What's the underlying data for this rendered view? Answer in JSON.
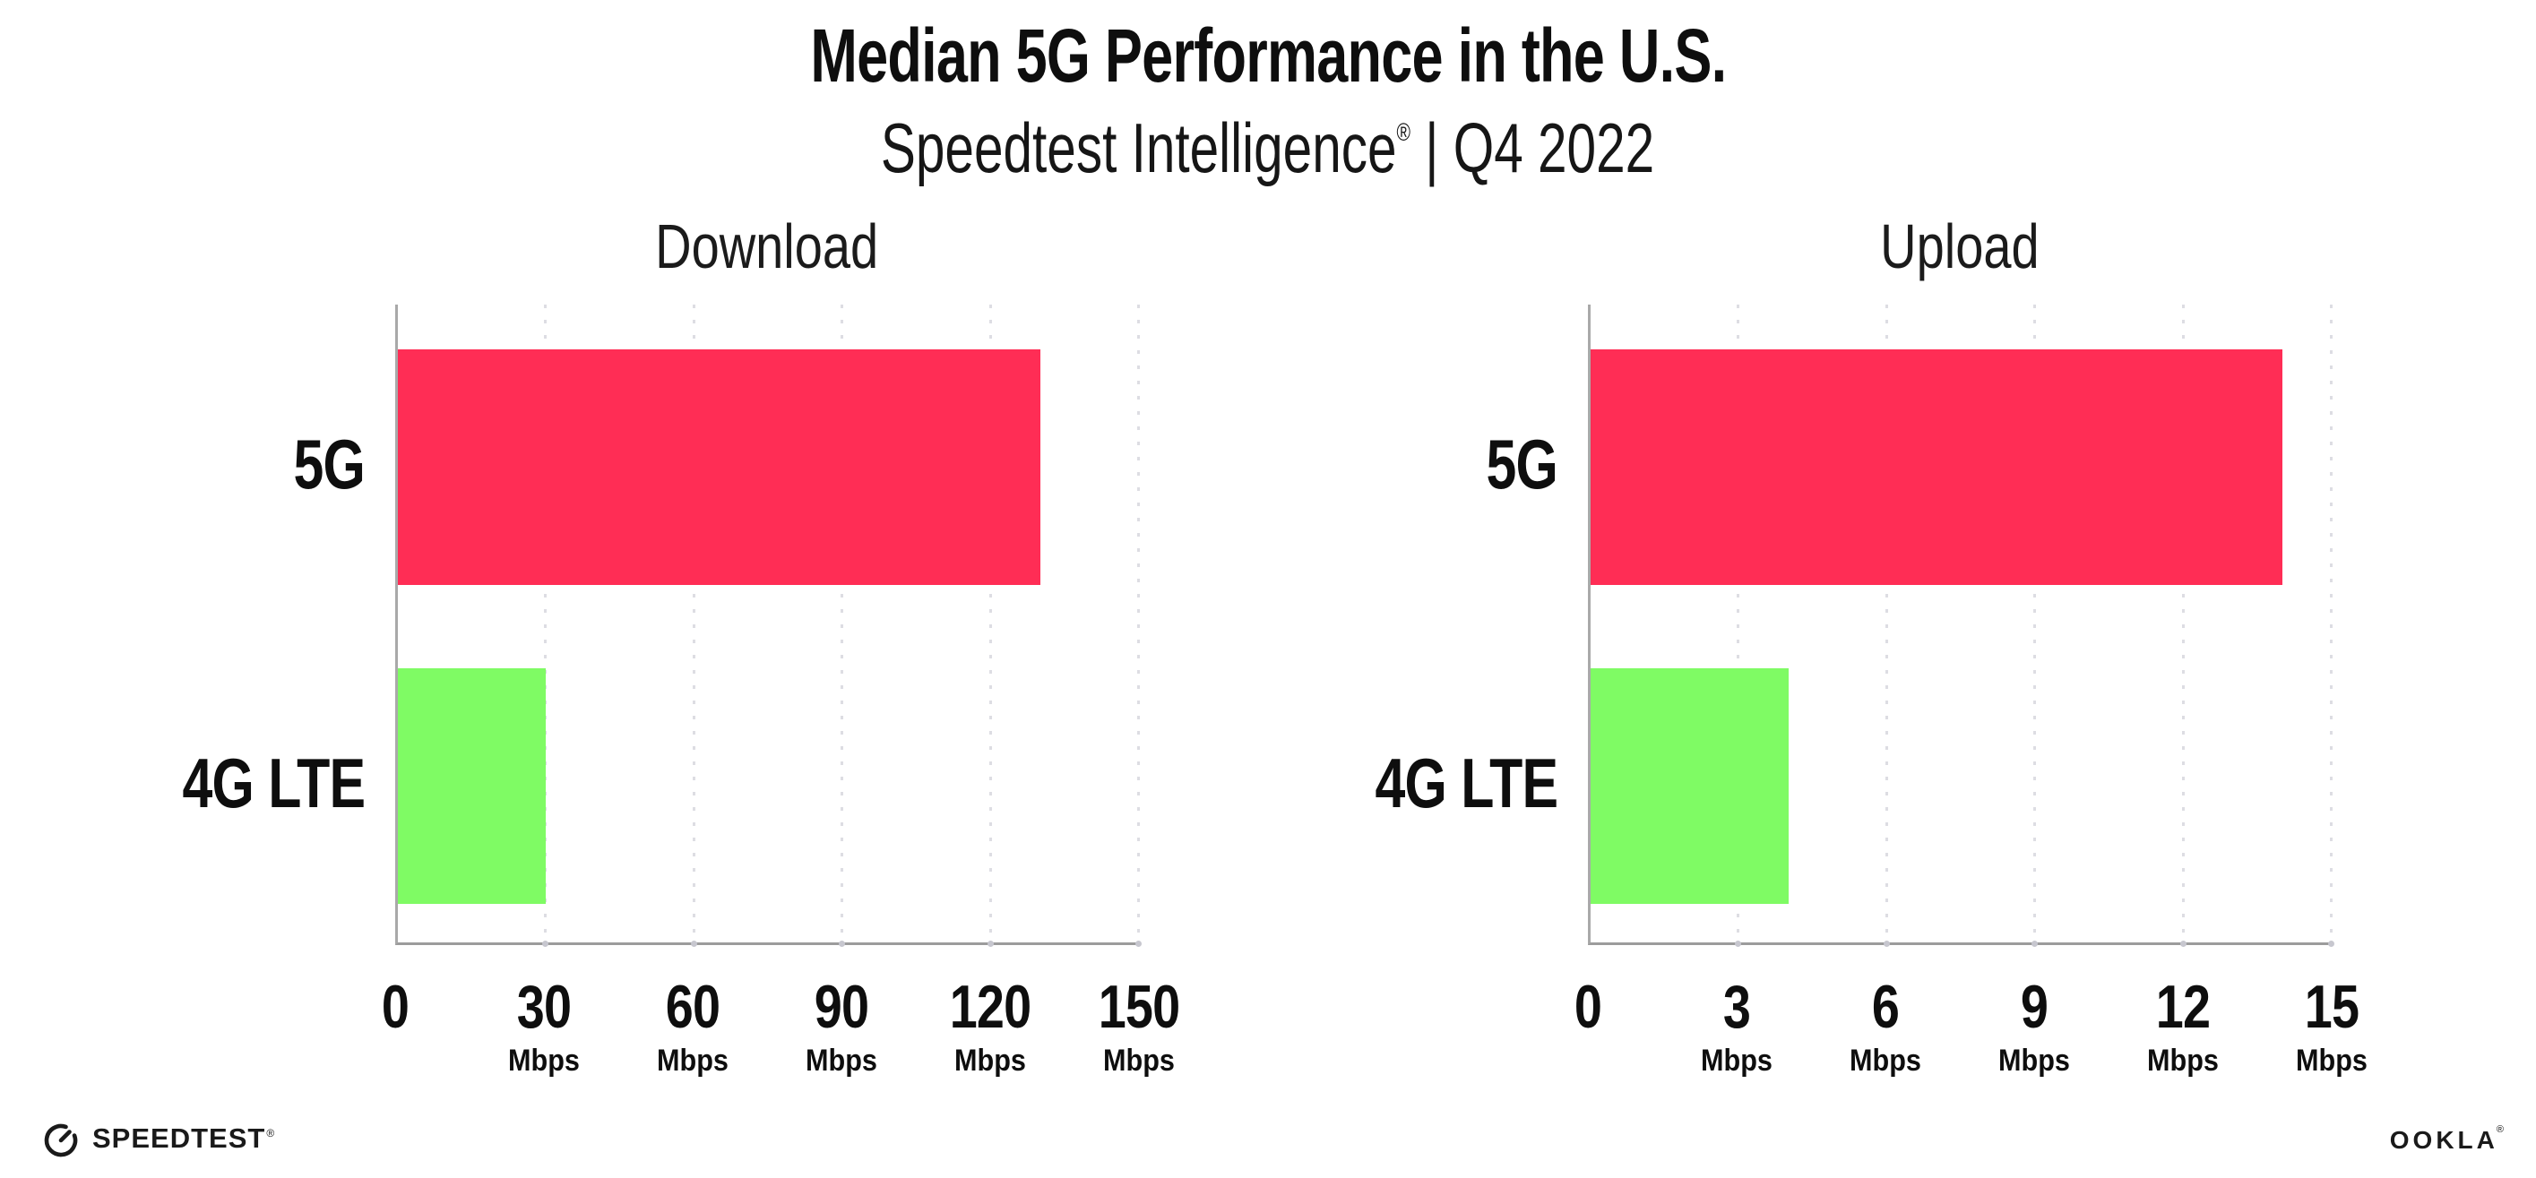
{
  "header": {
    "title": "Median 5G Performance in the U.S.",
    "subtitle_brand": "Speedtest Intelligence",
    "subtitle_reg": "®",
    "subtitle_rest": " | Q4 2022"
  },
  "colors": {
    "bar_5g": "#FF2D55",
    "bar_4g": "#7FFB64",
    "axis": "#9c9c9c",
    "gridline": "#dddde3",
    "text": "#0e0e0e"
  },
  "chart_data": [
    {
      "type": "bar",
      "orientation": "horizontal",
      "title": "Download",
      "categories": [
        "5G",
        "4G LTE"
      ],
      "values": [
        130,
        30
      ],
      "unit": "Mbps",
      "xlim": [
        0,
        150
      ],
      "xticks": [
        0,
        30,
        60,
        90,
        120,
        150
      ],
      "bar_colors": [
        "#FF2D55",
        "#7FFB64"
      ],
      "grid": "dotted-vertical",
      "legend": "none"
    },
    {
      "type": "bar",
      "orientation": "horizontal",
      "title": "Upload",
      "categories": [
        "5G",
        "4G LTE"
      ],
      "values": [
        14,
        4
      ],
      "unit": "Mbps",
      "xlim": [
        0,
        15
      ],
      "xticks": [
        0,
        3,
        6,
        9,
        12,
        15
      ],
      "bar_colors": [
        "#FF2D55",
        "#7FFB64"
      ],
      "grid": "dotted-vertical",
      "legend": "none"
    }
  ],
  "footer": {
    "speedtest_label": "SPEEDTEST",
    "speedtest_mark": "®",
    "ookla_label": "OOKLA",
    "ookla_mark": "®"
  }
}
